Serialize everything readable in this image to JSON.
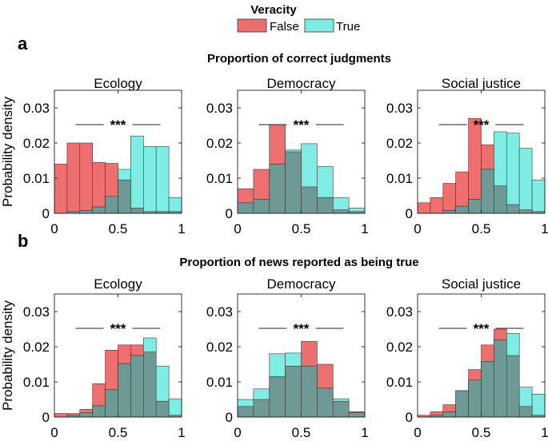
{
  "legend": {
    "title": "Veracity",
    "items": [
      {
        "label": "False",
        "color": "#ee6f6f"
      },
      {
        "label": "True",
        "color": "#7fede3"
      }
    ],
    "overlap_color": "#6f9994"
  },
  "panels": [
    {
      "letter": "a",
      "title": "Proportion of correct judgments"
    },
    {
      "letter": "b",
      "title": "Proportion of news reported as being true"
    }
  ],
  "ylabel": "Probability density",
  "significance": "***",
  "chart_data": [
    {
      "type": "bar",
      "panel": "a",
      "title": "Ecology",
      "x_range": [
        0,
        1
      ],
      "ylim": [
        0,
        0.035
      ],
      "xticks": [
        "0",
        "0.5",
        "1"
      ],
      "yticks": [
        "0",
        "0.01",
        "0.02",
        "0.03"
      ],
      "series": [
        {
          "name": "False",
          "bins": [
            [
              0,
              0.1
            ],
            [
              0.1,
              0.2
            ],
            [
              0.2,
              0.3
            ],
            [
              0.3,
              0.4
            ],
            [
              0.4,
              0.5
            ],
            [
              0.5,
              0.6
            ],
            [
              0.6,
              0.7
            ],
            [
              0.7,
              0.8
            ],
            [
              0.8,
              0.9
            ],
            [
              0.9,
              1.0
            ]
          ],
          "values": [
            0.014,
            0.02,
            0.02,
            0.0145,
            0.0142,
            0.0095,
            0.0015,
            0.0005,
            0.0005,
            0.0005
          ]
        },
        {
          "name": "True",
          "bins": [
            [
              0.1,
              0.2
            ],
            [
              0.2,
              0.3
            ],
            [
              0.3,
              0.4
            ],
            [
              0.4,
              0.5
            ],
            [
              0.5,
              0.6
            ],
            [
              0.6,
              0.7
            ],
            [
              0.7,
              0.8
            ],
            [
              0.8,
              0.9
            ],
            [
              0.9,
              1.0
            ]
          ],
          "values": [
            0.0005,
            0.0008,
            0.0018,
            0.0048,
            0.0125,
            0.022,
            0.019,
            0.019,
            0.0045
          ]
        }
      ]
    },
    {
      "type": "bar",
      "panel": "a",
      "title": "Democracy",
      "x_range": [
        0,
        1
      ],
      "ylim": [
        0,
        0.035
      ],
      "xticks": [
        "0",
        "0.5",
        "1"
      ],
      "yticks": [
        "0",
        "0.01",
        "0.02",
        "0.03"
      ],
      "series": [
        {
          "name": "False",
          "bins": [
            [
              0,
              0.125
            ],
            [
              0.125,
              0.25
            ],
            [
              0.25,
              0.375
            ],
            [
              0.375,
              0.5
            ],
            [
              0.5,
              0.625
            ],
            [
              0.625,
              0.75
            ],
            [
              0.75,
              0.875
            ],
            [
              0.875,
              1.0
            ]
          ],
          "values": [
            0.007,
            0.0125,
            0.0252,
            0.0175,
            0.0075,
            0.0045,
            0.001,
            0.0005
          ]
        },
        {
          "name": "True",
          "bins": [
            [
              0,
              0.125
            ],
            [
              0.125,
              0.25
            ],
            [
              0.25,
              0.375
            ],
            [
              0.375,
              0.5
            ],
            [
              0.5,
              0.625
            ],
            [
              0.625,
              0.75
            ],
            [
              0.75,
              0.875
            ],
            [
              0.875,
              1.0
            ]
          ],
          "values": [
            0.003,
            0.004,
            0.014,
            0.018,
            0.0198,
            0.0133,
            0.0045,
            0.0015
          ]
        }
      ]
    },
    {
      "type": "bar",
      "panel": "a",
      "title": "Social justice",
      "x_range": [
        0,
        1
      ],
      "ylim": [
        0,
        0.035
      ],
      "xticks": [
        "0",
        "0.5",
        "1"
      ],
      "yticks": [
        "0",
        "0.01",
        "0.02",
        "0.03"
      ],
      "series": [
        {
          "name": "False",
          "bins": [
            [
              0,
              0.1
            ],
            [
              0.1,
              0.2
            ],
            [
              0.2,
              0.3
            ],
            [
              0.3,
              0.4
            ],
            [
              0.4,
              0.5
            ],
            [
              0.5,
              0.6
            ],
            [
              0.6,
              0.7
            ],
            [
              0.7,
              0.8
            ],
            [
              0.8,
              0.9
            ],
            [
              0.9,
              1.0
            ]
          ],
          "values": [
            0.003,
            0.0045,
            0.0085,
            0.0118,
            0.027,
            0.0195,
            0.0078,
            0.0025,
            0.001,
            0.0005
          ]
        },
        {
          "name": "True",
          "bins": [
            [
              0.2,
              0.3
            ],
            [
              0.3,
              0.4
            ],
            [
              0.4,
              0.5
            ],
            [
              0.5,
              0.6
            ],
            [
              0.6,
              0.7
            ],
            [
              0.7,
              0.8
            ],
            [
              0.8,
              0.9
            ],
            [
              0.9,
              1.0
            ]
          ],
          "values": [
            0.0008,
            0.002,
            0.004,
            0.0125,
            0.0232,
            0.0228,
            0.0185,
            0.0095
          ]
        }
      ]
    },
    {
      "type": "bar",
      "panel": "b",
      "title": "Ecology",
      "x_range": [
        0,
        1
      ],
      "ylim": [
        0,
        0.035
      ],
      "xticks": [
        "0",
        "0.5",
        "1"
      ],
      "yticks": [
        "0",
        "0.01",
        "0.02",
        "0.03"
      ],
      "series": [
        {
          "name": "False",
          "bins": [
            [
              0,
              0.1
            ],
            [
              0.1,
              0.2
            ],
            [
              0.2,
              0.3
            ],
            [
              0.3,
              0.4
            ],
            [
              0.4,
              0.5
            ],
            [
              0.5,
              0.6
            ],
            [
              0.6,
              0.7
            ],
            [
              0.7,
              0.8
            ],
            [
              0.8,
              0.9
            ],
            [
              0.9,
              1.0
            ]
          ],
          "values": [
            0.001,
            0.001,
            0.0022,
            0.0095,
            0.019,
            0.0205,
            0.0205,
            0.0185,
            0.0045,
            0.0005
          ]
        },
        {
          "name": "True",
          "bins": [
            [
              0,
              0.1
            ],
            [
              0.1,
              0.2
            ],
            [
              0.2,
              0.3
            ],
            [
              0.3,
              0.4
            ],
            [
              0.4,
              0.5
            ],
            [
              0.5,
              0.6
            ],
            [
              0.6,
              0.7
            ],
            [
              0.7,
              0.8
            ],
            [
              0.8,
              0.9
            ],
            [
              0.9,
              1.0
            ]
          ],
          "values": [
            0,
            0.0005,
            0.0012,
            0.0032,
            0.0078,
            0.0152,
            0.0175,
            0.0225,
            0.0145,
            0.0052
          ]
        }
      ]
    },
    {
      "type": "bar",
      "panel": "b",
      "title": "Democracy",
      "x_range": [
        0,
        1
      ],
      "ylim": [
        0,
        0.035
      ],
      "xticks": [
        "0",
        "0.5",
        "1"
      ],
      "yticks": [
        "0",
        "0.01",
        "0.02",
        "0.03"
      ],
      "series": [
        {
          "name": "False",
          "bins": [
            [
              0,
              0.125
            ],
            [
              0.125,
              0.25
            ],
            [
              0.25,
              0.375
            ],
            [
              0.375,
              0.5
            ],
            [
              0.5,
              0.625
            ],
            [
              0.625,
              0.75
            ],
            [
              0.75,
              0.875
            ],
            [
              0.875,
              1.0
            ]
          ],
          "values": [
            0.003,
            0.005,
            0.0115,
            0.0145,
            0.0215,
            0.015,
            0.0045,
            0.0015
          ]
        },
        {
          "name": "True",
          "bins": [
            [
              0,
              0.125
            ],
            [
              0.125,
              0.25
            ],
            [
              0.25,
              0.375
            ],
            [
              0.375,
              0.5
            ],
            [
              0.5,
              0.625
            ],
            [
              0.625,
              0.75
            ],
            [
              0.75,
              0.875
            ],
            [
              0.875,
              1.0
            ]
          ],
          "values": [
            0.005,
            0.008,
            0.018,
            0.0182,
            0.0145,
            0.0082,
            0.0052,
            0.0012
          ]
        }
      ]
    },
    {
      "type": "bar",
      "panel": "b",
      "title": "Social justice",
      "x_range": [
        0,
        1
      ],
      "ylim": [
        0,
        0.035
      ],
      "xticks": [
        "0",
        "0.5",
        "1"
      ],
      "yticks": [
        "0",
        "0.01",
        "0.02",
        "0.03"
      ],
      "series": [
        {
          "name": "False",
          "bins": [
            [
              0,
              0.1
            ],
            [
              0.1,
              0.2
            ],
            [
              0.2,
              0.3
            ],
            [
              0.3,
              0.4
            ],
            [
              0.4,
              0.5
            ],
            [
              0.5,
              0.6
            ],
            [
              0.6,
              0.7
            ],
            [
              0.7,
              0.8
            ],
            [
              0.8,
              0.9
            ],
            [
              0.9,
              1.0
            ]
          ],
          "values": [
            0.0005,
            0.0015,
            0.0035,
            0.0075,
            0.0135,
            0.0205,
            0.025,
            0.0175,
            0.003,
            0.0005
          ]
        },
        {
          "name": "True",
          "bins": [
            [
              0,
              0.1
            ],
            [
              0.1,
              0.2
            ],
            [
              0.2,
              0.3
            ],
            [
              0.3,
              0.4
            ],
            [
              0.4,
              0.5
            ],
            [
              0.5,
              0.6
            ],
            [
              0.6,
              0.7
            ],
            [
              0.7,
              0.8
            ],
            [
              0.8,
              0.9
            ],
            [
              0.9,
              1.0
            ]
          ],
          "values": [
            0,
            0.0005,
            0.0015,
            0.0075,
            0.0105,
            0.0158,
            0.022,
            0.0238,
            0.0085,
            0.0065
          ]
        }
      ]
    }
  ]
}
